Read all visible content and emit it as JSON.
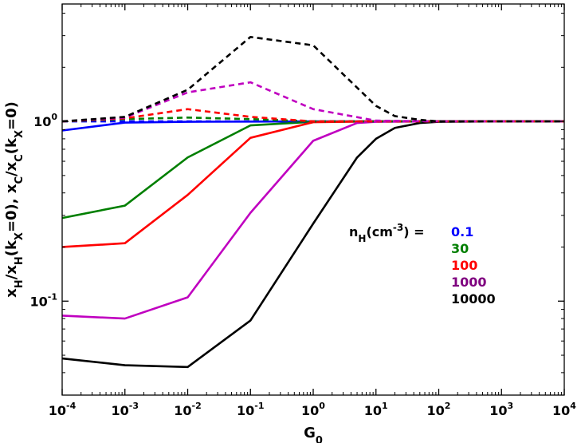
{
  "chart_data": {
    "type": "line",
    "title": "",
    "x_scale": "log",
    "y_scale": "log",
    "xlim": [
      0.0001,
      10000
    ],
    "ylim": [
      0.03,
      4.5
    ],
    "grid": false,
    "xlabel": {
      "base": "G",
      "sub": "0"
    },
    "ylabel": {
      "parts": [
        {
          "t": "x",
          "s": "n"
        },
        {
          "t": "H",
          "s": "sub"
        },
        {
          "t": "/x",
          "s": "n"
        },
        {
          "t": "H",
          "s": "sub"
        },
        {
          "t": "(k",
          "s": "n"
        },
        {
          "t": "X",
          "s": "sub"
        },
        {
          "t": "=0), x",
          "s": "n"
        },
        {
          "t": "C",
          "s": "sub"
        },
        {
          "t": "/x",
          "s": "n"
        },
        {
          "t": "C",
          "s": "sub"
        },
        {
          "t": "(k",
          "s": "n"
        },
        {
          "t": "X",
          "s": "sub"
        },
        {
          "t": "=0)",
          "s": "n"
        }
      ]
    },
    "x_ticks": [
      {
        "value": 0.0001,
        "base": "10",
        "exp": "-4"
      },
      {
        "value": 0.001,
        "base": "10",
        "exp": "-3"
      },
      {
        "value": 0.01,
        "base": "10",
        "exp": "-2"
      },
      {
        "value": 0.1,
        "base": "10",
        "exp": "-1"
      },
      {
        "value": 1,
        "base": "10",
        "exp": "0"
      },
      {
        "value": 10,
        "base": "10",
        "exp": "1"
      },
      {
        "value": 100,
        "base": "10",
        "exp": "2"
      },
      {
        "value": 1000,
        "base": "10",
        "exp": "3"
      },
      {
        "value": 10000,
        "base": "10",
        "exp": "4"
      }
    ],
    "y_ticks": [
      {
        "value": 0.1,
        "base": "10",
        "exp": "-1"
      },
      {
        "value": 1,
        "base": "10",
        "exp": "0"
      }
    ],
    "legend": {
      "position": "center-right",
      "title_parts": [
        {
          "t": "n",
          "s": "n"
        },
        {
          "t": "H",
          "s": "sub"
        },
        {
          "t": "(cm",
          "s": "n"
        },
        {
          "t": "-3",
          "s": "sup"
        },
        {
          "t": ") =",
          "s": "n"
        }
      ],
      "entries": [
        {
          "label": "0.1",
          "color": "#0000ff"
        },
        {
          "label": "30",
          "color": "#007f00"
        },
        {
          "label": "100",
          "color": "#ff0000"
        },
        {
          "label": "1000",
          "color": "#7f007f"
        },
        {
          "label": "10000",
          "color": "#000000"
        }
      ]
    },
    "series": [
      {
        "name": "xH 0.1",
        "color": "#0000ff",
        "style": "solid",
        "x": [
          0.0001,
          0.001,
          0.01,
          0.1,
          1,
          10,
          100,
          1000,
          10000
        ],
        "y": [
          0.89,
          0.985,
          0.995,
          0.998,
          1.0,
          1.0,
          1.0,
          1.0,
          1.0
        ]
      },
      {
        "name": "xH 30",
        "color": "#007f00",
        "style": "solid",
        "x": [
          0.0001,
          0.001,
          0.01,
          0.1,
          1,
          10,
          100,
          1000,
          10000
        ],
        "y": [
          0.29,
          0.34,
          0.63,
          0.95,
          0.995,
          1.0,
          1.0,
          1.0,
          1.0
        ]
      },
      {
        "name": "xH 100",
        "color": "#ff0000",
        "style": "solid",
        "x": [
          0.0001,
          0.001,
          0.01,
          0.1,
          1,
          10,
          100,
          1000,
          10000
        ],
        "y": [
          0.2,
          0.21,
          0.39,
          0.81,
          0.99,
          1.0,
          1.0,
          1.0,
          1.0
        ]
      },
      {
        "name": "xH 1000",
        "color": "#c000c0",
        "style": "solid",
        "x": [
          0.0001,
          0.001,
          0.01,
          0.1,
          1,
          5,
          10,
          100,
          1000,
          10000
        ],
        "y": [
          0.083,
          0.08,
          0.105,
          0.31,
          0.78,
          0.98,
          0.995,
          1.0,
          1.0,
          1.0
        ]
      },
      {
        "name": "xH 10000",
        "color": "#000000",
        "style": "solid",
        "x": [
          0.0001,
          0.001,
          0.01,
          0.1,
          1,
          5,
          10,
          20,
          50,
          100,
          1000,
          10000
        ],
        "y": [
          0.048,
          0.044,
          0.043,
          0.078,
          0.27,
          0.63,
          0.8,
          0.92,
          0.98,
          0.995,
          1.0,
          1.0
        ]
      },
      {
        "name": "xC 0.1",
        "color": "#0000ff",
        "style": "dashed",
        "x": [
          0.0001,
          0.001,
          0.01,
          0.1,
          1,
          10,
          100,
          1000,
          10000
        ],
        "y": [
          1.0,
          1.0,
          1.0,
          1.0,
          1.0,
          1.0,
          1.0,
          1.0,
          1.0
        ]
      },
      {
        "name": "xC 30",
        "color": "#007f00",
        "style": "dashed",
        "x": [
          0.0001,
          0.001,
          0.01,
          0.1,
          1,
          10,
          100,
          1000,
          10000
        ],
        "y": [
          1.0,
          1.03,
          1.05,
          1.03,
          1.0,
          1.0,
          1.0,
          1.0,
          1.0
        ]
      },
      {
        "name": "xC 100",
        "color": "#ff0000",
        "style": "dashed",
        "x": [
          0.0001,
          0.001,
          0.01,
          0.1,
          1,
          10,
          100,
          1000,
          10000
        ],
        "y": [
          1.0,
          1.04,
          1.17,
          1.06,
          1.0,
          1.0,
          1.0,
          1.0,
          1.0
        ]
      },
      {
        "name": "xC 1000",
        "color": "#c000c0",
        "style": "dashed",
        "x": [
          0.0001,
          0.001,
          0.01,
          0.1,
          1,
          10,
          100,
          1000,
          10000
        ],
        "y": [
          1.0,
          1.05,
          1.45,
          1.65,
          1.17,
          1.01,
          1.0,
          1.0,
          1.0
        ]
      },
      {
        "name": "xC 10000",
        "color": "#000000",
        "style": "dashed",
        "x": [
          0.0001,
          0.001,
          0.01,
          0.1,
          1,
          10,
          20,
          50,
          100,
          1000,
          10000
        ],
        "y": [
          1.0,
          1.06,
          1.5,
          2.95,
          2.65,
          1.22,
          1.07,
          1.02,
          1.0,
          1.0,
          1.0
        ]
      }
    ]
  }
}
